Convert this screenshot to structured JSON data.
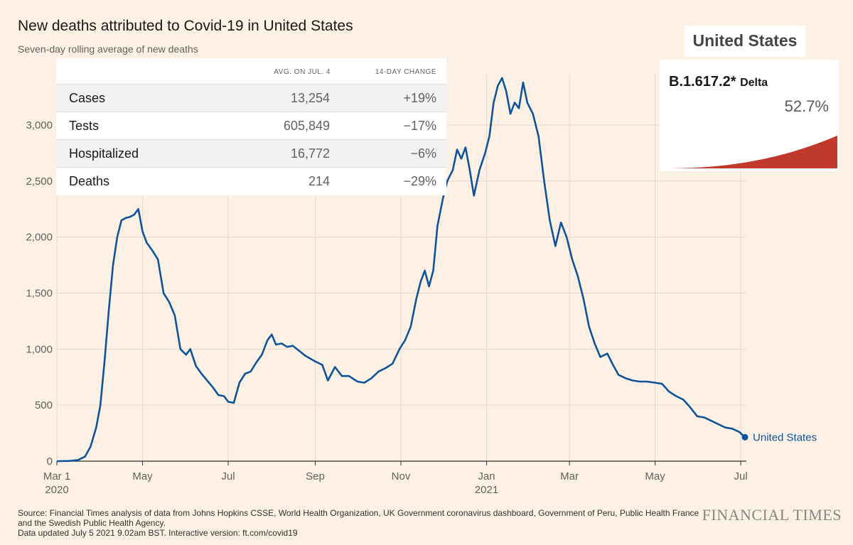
{
  "title": "New deaths attributed to Covid-19 in United States",
  "subtitle": "Seven-day rolling average of new deaths",
  "table": {
    "col_avg": "AVG. ON JUL. 4",
    "col_change": "14-DAY CHANGE",
    "rows": [
      {
        "label": "Cases",
        "avg": "13,254",
        "change": "+19%"
      },
      {
        "label": "Tests",
        "avg": "605,849",
        "change": "−17%"
      },
      {
        "label": "Hospitalized",
        "avg": "16,772",
        "change": "−6%"
      },
      {
        "label": "Deaths",
        "avg": "214",
        "change": "−29%"
      }
    ]
  },
  "variant": {
    "country": "United States",
    "name": "B.1.617.2*",
    "nickname": "Delta",
    "share": "52.7%",
    "share_value": 52.7,
    "color": "#c0392b"
  },
  "source": {
    "line1": "Source: Financial Times analysis of data from Johns Hopkins CSSE, World Health Organization, UK Government coronavirus dashboard, Government of Peru, Public Health France",
    "line2": "and the Swedish Public Health Agency.",
    "line3": "Data updated July 5 2021 9.02am BST. Interactive version: ft.com/covid19"
  },
  "brand": "FINANCIAL TIMES",
  "colors": {
    "background": "#fdf1e5",
    "line": "#0f5499",
    "grid": "#e6d9ce",
    "axis": "#33302e"
  },
  "chart_data": {
    "type": "line",
    "title": "New deaths attributed to Covid-19 in United States",
    "subtitle": "Seven-day rolling average of new deaths",
    "xlabel": "",
    "ylabel": "",
    "ylim": [
      0,
      3450
    ],
    "xlim": [
      "2020-03-01",
      "2021-07-05"
    ],
    "yticks": [
      {
        "value": 0,
        "label": "0"
      },
      {
        "value": 500,
        "label": "500"
      },
      {
        "value": 1000,
        "label": "1,000"
      },
      {
        "value": 1500,
        "label": "1,500"
      },
      {
        "value": 2000,
        "label": "2,000"
      },
      {
        "value": 2500,
        "label": "2,500"
      },
      {
        "value": 3000,
        "label": "3,000"
      }
    ],
    "xticks": [
      {
        "date": "2020-03-01",
        "label": "Mar 1",
        "year": "2020"
      },
      {
        "date": "2020-05-01",
        "label": "May",
        "year": ""
      },
      {
        "date": "2020-07-01",
        "label": "Jul",
        "year": ""
      },
      {
        "date": "2020-09-01",
        "label": "Sep",
        "year": ""
      },
      {
        "date": "2020-11-01",
        "label": "Nov",
        "year": ""
      },
      {
        "date": "2021-01-01",
        "label": "Jan",
        "year": "2021"
      },
      {
        "date": "2021-03-01",
        "label": "Mar",
        "year": ""
      },
      {
        "date": "2021-05-01",
        "label": "May",
        "year": ""
      },
      {
        "date": "2021-07-01",
        "label": "Jul",
        "year": ""
      }
    ],
    "grid": true,
    "series": [
      {
        "name": "United States",
        "color": "#0f5499",
        "points": [
          [
            "2020-03-01",
            0
          ],
          [
            "2020-03-10",
            2
          ],
          [
            "2020-03-16",
            10
          ],
          [
            "2020-03-21",
            40
          ],
          [
            "2020-03-25",
            130
          ],
          [
            "2020-03-29",
            300
          ],
          [
            "2020-04-01",
            500
          ],
          [
            "2020-04-04",
            900
          ],
          [
            "2020-04-07",
            1350
          ],
          [
            "2020-04-10",
            1750
          ],
          [
            "2020-04-13",
            2000
          ],
          [
            "2020-04-16",
            2150
          ],
          [
            "2020-04-19",
            2170
          ],
          [
            "2020-04-22",
            2180
          ],
          [
            "2020-04-25",
            2200
          ],
          [
            "2020-04-28",
            2250
          ],
          [
            "2020-05-01",
            2050
          ],
          [
            "2020-05-04",
            1950
          ],
          [
            "2020-05-08",
            1880
          ],
          [
            "2020-05-12",
            1800
          ],
          [
            "2020-05-16",
            1500
          ],
          [
            "2020-05-20",
            1420
          ],
          [
            "2020-05-24",
            1300
          ],
          [
            "2020-05-28",
            1000
          ],
          [
            "2020-06-01",
            950
          ],
          [
            "2020-06-04",
            1000
          ],
          [
            "2020-06-08",
            850
          ],
          [
            "2020-06-12",
            780
          ],
          [
            "2020-06-16",
            720
          ],
          [
            "2020-06-20",
            660
          ],
          [
            "2020-06-24",
            590
          ],
          [
            "2020-06-28",
            580
          ],
          [
            "2020-07-01",
            530
          ],
          [
            "2020-07-05",
            520
          ],
          [
            "2020-07-09",
            700
          ],
          [
            "2020-07-13",
            780
          ],
          [
            "2020-07-17",
            800
          ],
          [
            "2020-07-21",
            880
          ],
          [
            "2020-07-25",
            950
          ],
          [
            "2020-07-29",
            1080
          ],
          [
            "2020-08-01",
            1130
          ],
          [
            "2020-08-04",
            1040
          ],
          [
            "2020-08-08",
            1050
          ],
          [
            "2020-08-12",
            1020
          ],
          [
            "2020-08-16",
            1030
          ],
          [
            "2020-08-20",
            990
          ],
          [
            "2020-08-25",
            940
          ],
          [
            "2020-09-01",
            890
          ],
          [
            "2020-09-06",
            860
          ],
          [
            "2020-09-10",
            720
          ],
          [
            "2020-09-15",
            840
          ],
          [
            "2020-09-20",
            760
          ],
          [
            "2020-09-25",
            760
          ],
          [
            "2020-10-01",
            710
          ],
          [
            "2020-10-06",
            700
          ],
          [
            "2020-10-11",
            740
          ],
          [
            "2020-10-16",
            800
          ],
          [
            "2020-10-21",
            830
          ],
          [
            "2020-10-26",
            870
          ],
          [
            "2020-10-31",
            1000
          ],
          [
            "2020-11-04",
            1080
          ],
          [
            "2020-11-08",
            1200
          ],
          [
            "2020-11-12",
            1450
          ],
          [
            "2020-11-15",
            1600
          ],
          [
            "2020-11-18",
            1700
          ],
          [
            "2020-11-21",
            1560
          ],
          [
            "2020-11-24",
            1700
          ],
          [
            "2020-11-27",
            2100
          ],
          [
            "2020-12-01",
            2350
          ],
          [
            "2020-12-04",
            2500
          ],
          [
            "2020-12-08",
            2600
          ],
          [
            "2020-12-11",
            2780
          ],
          [
            "2020-12-14",
            2700
          ],
          [
            "2020-12-17",
            2800
          ],
          [
            "2020-12-20",
            2600
          ],
          [
            "2020-12-23",
            2370
          ],
          [
            "2020-12-27",
            2600
          ],
          [
            "2020-12-31",
            2750
          ],
          [
            "2021-01-03",
            2900
          ],
          [
            "2021-01-06",
            3200
          ],
          [
            "2021-01-09",
            3350
          ],
          [
            "2021-01-12",
            3420
          ],
          [
            "2021-01-15",
            3300
          ],
          [
            "2021-01-18",
            3100
          ],
          [
            "2021-01-21",
            3200
          ],
          [
            "2021-01-24",
            3150
          ],
          [
            "2021-01-27",
            3380
          ],
          [
            "2021-01-30",
            3200
          ],
          [
            "2021-02-03",
            3100
          ],
          [
            "2021-02-07",
            2900
          ],
          [
            "2021-02-11",
            2500
          ],
          [
            "2021-02-15",
            2150
          ],
          [
            "2021-02-19",
            1920
          ],
          [
            "2021-02-23",
            2130
          ],
          [
            "2021-02-27",
            2000
          ],
          [
            "2021-03-03",
            1800
          ],
          [
            "2021-03-07",
            1650
          ],
          [
            "2021-03-11",
            1450
          ],
          [
            "2021-03-15",
            1200
          ],
          [
            "2021-03-19",
            1050
          ],
          [
            "2021-03-23",
            930
          ],
          [
            "2021-03-28",
            960
          ],
          [
            "2021-04-01",
            860
          ],
          [
            "2021-04-05",
            770
          ],
          [
            "2021-04-10",
            740
          ],
          [
            "2021-04-15",
            720
          ],
          [
            "2021-04-20",
            710
          ],
          [
            "2021-04-25",
            710
          ],
          [
            "2021-05-01",
            700
          ],
          [
            "2021-05-06",
            690
          ],
          [
            "2021-05-11",
            620
          ],
          [
            "2021-05-16",
            580
          ],
          [
            "2021-05-21",
            550
          ],
          [
            "2021-05-26",
            480
          ],
          [
            "2021-05-31",
            400
          ],
          [
            "2021-06-05",
            390
          ],
          [
            "2021-06-10",
            360
          ],
          [
            "2021-06-15",
            330
          ],
          [
            "2021-06-20",
            300
          ],
          [
            "2021-06-25",
            290
          ],
          [
            "2021-06-30",
            260
          ],
          [
            "2021-07-04",
            214
          ]
        ]
      }
    ]
  }
}
